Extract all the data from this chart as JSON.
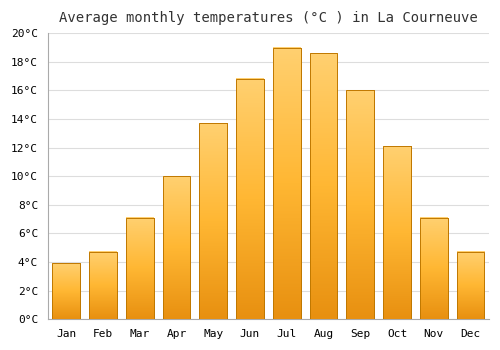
{
  "months": [
    "Jan",
    "Feb",
    "Mar",
    "Apr",
    "May",
    "Jun",
    "Jul",
    "Aug",
    "Sep",
    "Oct",
    "Nov",
    "Dec"
  ],
  "temperatures": [
    3.9,
    4.7,
    7.1,
    10.0,
    13.7,
    16.8,
    19.0,
    18.6,
    16.0,
    12.1,
    7.1,
    4.7
  ],
  "bar_color_light": "#FFB733",
  "bar_color_dark": "#E89010",
  "bar_edge_color": "#C07800",
  "title": "Average monthly temperatures (°C ) in La Courneuve",
  "ylim": [
    0,
    20
  ],
  "ytick_step": 2,
  "background_color": "#FFFFFF",
  "plot_bg_color": "#FFFFFF",
  "grid_color": "#DDDDDD",
  "title_fontsize": 10,
  "tick_fontsize": 8,
  "font_family": "monospace",
  "bar_width": 0.75
}
